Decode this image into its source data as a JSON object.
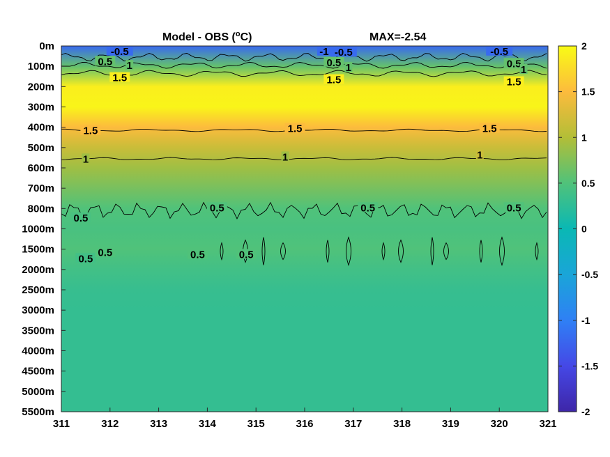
{
  "chart_data": {
    "type": "heatmap",
    "title": "Model - OBS (°C)",
    "title_parts": {
      "main": "Model - OBS (",
      "superscript": "o",
      "unit": "C)"
    },
    "annotation": "MAX=-2.54",
    "xlim": [
      311,
      321
    ],
    "x_ticks": [
      "311",
      "312",
      "313",
      "314",
      "315",
      "316",
      "317",
      "318",
      "319",
      "320",
      "321"
    ],
    "y_ticks": [
      "0m",
      "100m",
      "200m",
      "300m",
      "400m",
      "500m",
      "600m",
      "700m",
      "800m",
      "1000m",
      "1500m",
      "2000m",
      "2500m",
      "3000m",
      "3500m",
      "4000m",
      "4500m",
      "5000m",
      "5500m"
    ],
    "colorbar": {
      "range": [
        -2,
        2
      ],
      "ticks": [
        "2",
        "1.5",
        "1",
        "0.5",
        "0",
        "-0.5",
        "-1",
        "-1.5",
        "-2"
      ],
      "colormap": "parula"
    },
    "profile_by_depth_level": [
      {
        "depth": "0m",
        "value": -1.2
      },
      {
        "depth": "100m",
        "value": 0.6
      },
      {
        "depth": "200m",
        "value": 1.9
      },
      {
        "depth": "300m",
        "value": 1.95
      },
      {
        "depth": "400m",
        "value": 1.5
      },
      {
        "depth": "500m",
        "value": 1.15
      },
      {
        "depth": "600m",
        "value": 0.9
      },
      {
        "depth": "700m",
        "value": 0.7
      },
      {
        "depth": "800m",
        "value": 0.5
      },
      {
        "depth": "1000m",
        "value": 0.45
      },
      {
        "depth": "1500m",
        "value": 0.5
      },
      {
        "depth": "2000m",
        "value": 0.4
      },
      {
        "depth": "2500m",
        "value": 0.32
      },
      {
        "depth": "3000m",
        "value": 0.3
      },
      {
        "depth": "3500m",
        "value": 0.3
      },
      {
        "depth": "4000m",
        "value": 0.3
      },
      {
        "depth": "4500m",
        "value": 0.3
      },
      {
        "depth": "5000m",
        "value": 0.3
      },
      {
        "depth": "5500m",
        "value": 0.3
      }
    ],
    "contour_levels": [
      -1,
      -0.5,
      0.5,
      1,
      1.5
    ],
    "contour_labels": [
      {
        "text": "0.5",
        "x": 311.9,
        "depth_level": 0.8
      },
      {
        "text": "1",
        "x": 312.4,
        "depth_level": 1.0
      },
      {
        "text": "1.5",
        "x": 312.2,
        "depth_level": 1.6
      },
      {
        "text": "-0.5",
        "x": 312.2,
        "depth_level": 0.3
      },
      {
        "text": "0.5",
        "x": 316.6,
        "depth_level": 0.85
      },
      {
        "text": "1",
        "x": 316.9,
        "depth_level": 1.1
      },
      {
        "text": "1.5",
        "x": 316.6,
        "depth_level": 1.7
      },
      {
        "text": "-1",
        "x": 316.4,
        "depth_level": 0.3
      },
      {
        "text": "-0.5",
        "x": 316.8,
        "depth_level": 0.35
      },
      {
        "text": "0.5",
        "x": 320.3,
        "depth_level": 0.9
      },
      {
        "text": "1",
        "x": 320.5,
        "depth_level": 1.2
      },
      {
        "text": "1.5",
        "x": 320.3,
        "depth_level": 1.8
      },
      {
        "text": "-0.5",
        "x": 320.0,
        "depth_level": 0.3
      },
      {
        "text": "1.5",
        "x": 311.6,
        "depth_level": 4.2
      },
      {
        "text": "1.5",
        "x": 315.8,
        "depth_level": 4.1
      },
      {
        "text": "1.5",
        "x": 319.8,
        "depth_level": 4.1
      },
      {
        "text": "1",
        "x": 311.5,
        "depth_level": 5.6
      },
      {
        "text": "1",
        "x": 315.6,
        "depth_level": 5.5
      },
      {
        "text": "1",
        "x": 319.6,
        "depth_level": 5.4
      },
      {
        "text": "0.5",
        "x": 311.4,
        "depth_level": 8.5
      },
      {
        "text": "0.5",
        "x": 314.2,
        "depth_level": 8.0
      },
      {
        "text": "0.5",
        "x": 317.3,
        "depth_level": 8.0
      },
      {
        "text": "0.5",
        "x": 320.3,
        "depth_level": 8.0
      },
      {
        "text": "0.5",
        "x": 311.5,
        "depth_level": 10.5
      },
      {
        "text": "0.5",
        "x": 311.9,
        "depth_level": 10.2
      },
      {
        "text": "0.5",
        "x": 313.8,
        "depth_level": 10.3
      },
      {
        "text": "0.5",
        "x": 314.8,
        "depth_level": 10.3
      }
    ]
  }
}
